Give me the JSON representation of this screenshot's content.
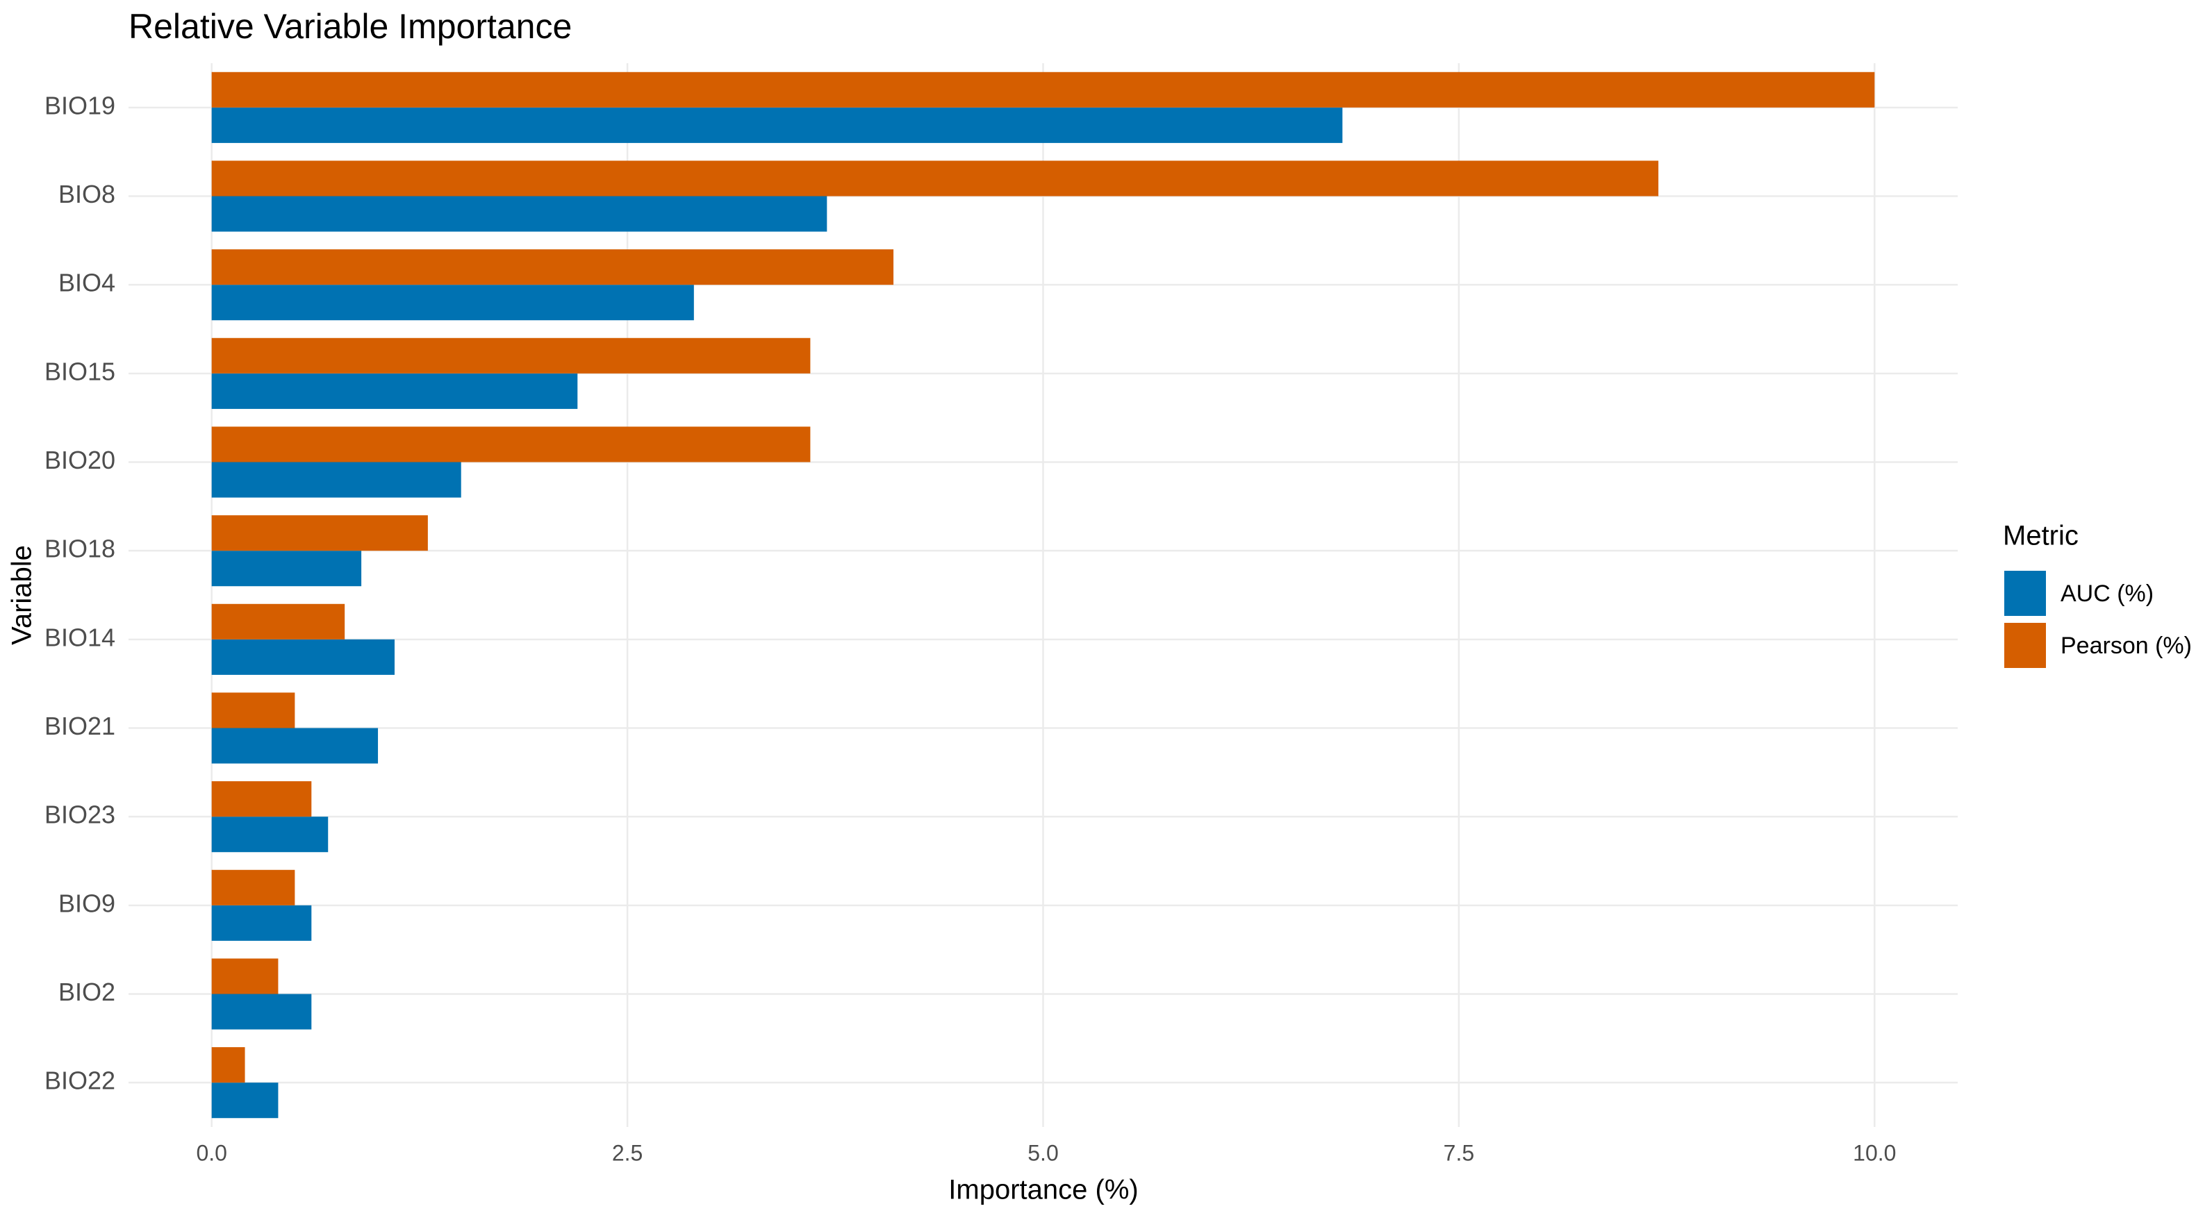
{
  "chart_data": {
    "type": "bar",
    "orientation": "horizontal",
    "title": "Relative Variable Importance",
    "x_label": "Importance (%)",
    "y_label": "Variable",
    "legend_title": "Metric",
    "legend_position": "right",
    "categories": [
      "BIO19",
      "BIO8",
      "BIO4",
      "BIO15",
      "BIO20",
      "BIO18",
      "BIO14",
      "BIO21",
      "BIO23",
      "BIO9",
      "BIO2",
      "BIO22"
    ],
    "series": [
      {
        "name": "AUC (%)",
        "color": "#0072B2",
        "values": [
          6.8,
          3.7,
          2.9,
          2.2,
          1.5,
          0.9,
          1.1,
          1.0,
          0.7,
          0.6,
          0.6,
          0.4
        ]
      },
      {
        "name": "Pearson (%)",
        "color": "#D55E00",
        "values": [
          10.0,
          8.7,
          4.1,
          3.6,
          3.6,
          1.3,
          0.8,
          0.5,
          0.6,
          0.5,
          0.4,
          0.2
        ]
      }
    ],
    "xlim": [
      -0.5,
      10.5
    ],
    "xticks": [
      {
        "value": 0,
        "label": "0.0"
      },
      2.5,
      {
        "value": 5,
        "label": "5.0"
      },
      7.5,
      {
        "value": 10,
        "label": "10.0"
      }
    ],
    "grid": true
  }
}
